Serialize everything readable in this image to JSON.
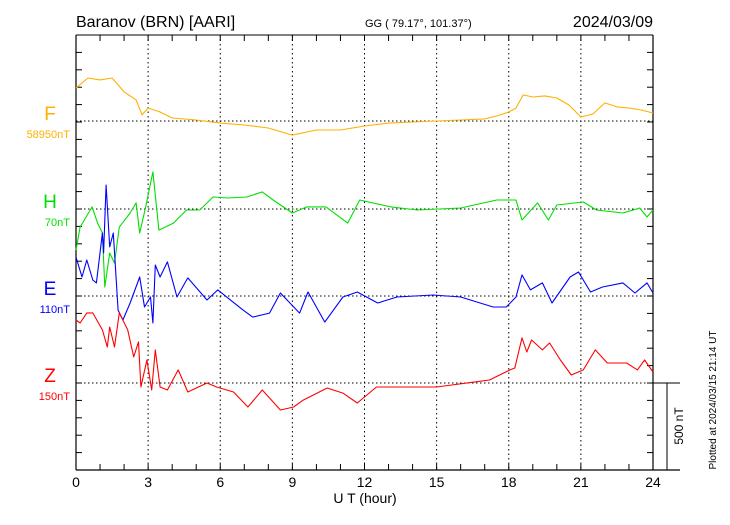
{
  "header": {
    "station": "Baranov (BRN)  [AARI]",
    "coords": "GG ( 79.17°, 101.37°)",
    "date": "2024/03/09"
  },
  "footer": {
    "plotted_at": "Plotted at 2024/03/15 21:14 UT"
  },
  "chart_data": {
    "type": "line",
    "title": "Baranov (BRN)  [AARI]",
    "xlabel": "U T (hour)",
    "xlim": [
      0,
      24
    ],
    "xticks": [
      "0",
      "3",
      "6",
      "9",
      "12",
      "15",
      "18",
      "21",
      "24"
    ],
    "grid": "dotted vertical every 3 h, dotted horizontal at each component baseline",
    "scale_bar": {
      "label": "500 nT",
      "value_nT": 500
    },
    "y_unit": "nT offset from baseline",
    "series": [
      {
        "name": "F",
        "baseline_label": "58950nT",
        "color": "#ffb000",
        "x": [
          0,
          0.5,
          1,
          1.5,
          2,
          2.5,
          2.75,
          3,
          3.5,
          4,
          5,
          6,
          7,
          8,
          9,
          10,
          11,
          12,
          13,
          14,
          15,
          16,
          17,
          17.5,
          18,
          18.3,
          18.6,
          19,
          19.5,
          20,
          20.5,
          21,
          21.5,
          22,
          22.5,
          23,
          23.5,
          24
        ],
        "y": [
          190,
          247,
          236,
          247,
          167,
          121,
          35,
          75,
          52,
          17,
          6,
          -12,
          -23,
          -40,
          -81,
          -52,
          -52,
          -29,
          -12,
          -6,
          0,
          6,
          12,
          29,
          52,
          75,
          150,
          138,
          144,
          132,
          92,
          23,
          40,
          104,
          81,
          75,
          63,
          46
        ]
      },
      {
        "name": "H",
        "baseline_label": "70nT",
        "color": "#00e000",
        "x": [
          0,
          0.17,
          0.67,
          0.9,
          1.1,
          1.2,
          1.4,
          1.6,
          1.8,
          2.25,
          2.5,
          2.65,
          2.9,
          3.2,
          3.45,
          4.05,
          4.6,
          5.15,
          5.7,
          6.3,
          7.1,
          7.75,
          8.2,
          9,
          9.6,
          10.4,
          11.3,
          11.8,
          13.1,
          14.2,
          16,
          17.5,
          18.3,
          18.55,
          19.2,
          19.65,
          20,
          21.1,
          21.65,
          22.75,
          23.45,
          23.75,
          24
        ],
        "y": [
          -236,
          -104,
          12,
          -81,
          -138,
          -449,
          -253,
          -311,
          -104,
          -23,
          35,
          -138,
          12,
          213,
          -121,
          -81,
          -6,
          -6,
          69,
          63,
          69,
          98,
          52,
          -23,
          12,
          12,
          -81,
          52,
          12,
          -6,
          6,
          52,
          52,
          -63,
          35,
          -63,
          23,
          40,
          -6,
          -23,
          6,
          -46,
          -6
        ]
      },
      {
        "name": "E",
        "baseline_label": "110nT",
        "color": "#0000ff",
        "x": [
          0,
          0.25,
          0.45,
          0.7,
          0.85,
          1.1,
          1.15,
          1.25,
          1.4,
          1.55,
          1.75,
          1.95,
          2.25,
          2.65,
          2.85,
          3.1,
          3.2,
          3.3,
          3.5,
          3.8,
          4.2,
          4.65,
          5.45,
          5.9,
          6.95,
          7.35,
          8.05,
          8.5,
          9.3,
          9.65,
          10.35,
          11.1,
          11.7,
          12.55,
          13.35,
          14.85,
          16,
          17.35,
          17.9,
          18.3,
          18.55,
          18.9,
          19.4,
          19.8,
          20.55,
          20.9,
          21.4,
          21.9,
          22.75,
          23.25,
          23.75,
          24
        ],
        "y": [
          224,
          109,
          207,
          92,
          75,
          362,
          247,
          638,
          282,
          362,
          -81,
          -138,
          -40,
          109,
          -63,
          -6,
          -155,
          178,
          109,
          196,
          -6,
          104,
          -23,
          35,
          -81,
          -121,
          -98,
          17,
          -98,
          23,
          -150,
          -6,
          23,
          -40,
          -6,
          6,
          -6,
          -63,
          -63,
          -6,
          121,
          35,
          75,
          -40,
          109,
          138,
          23,
          52,
          75,
          17,
          75,
          17
        ]
      },
      {
        "name": "Z",
        "baseline_label": "150nT",
        "color": "#ff0000",
        "x": [
          0,
          0.17,
          0.45,
          0.7,
          1.1,
          1.3,
          1.4,
          1.6,
          1.8,
          2.15,
          2.4,
          2.6,
          2.7,
          2.95,
          3.15,
          3.3,
          3.5,
          3.8,
          4.25,
          4.65,
          5.45,
          5.85,
          6.55,
          7.15,
          7.75,
          8.5,
          9.05,
          9.45,
          10.45,
          11.1,
          11.7,
          12.5,
          13.6,
          15,
          17.2,
          18.05,
          18.25,
          18.55,
          18.75,
          18.95,
          19.4,
          19.7,
          20.15,
          20.6,
          21.1,
          21.6,
          22.1,
          22.9,
          23.35,
          23.65,
          24
        ],
        "y": [
          362,
          345,
          403,
          403,
          305,
          207,
          322,
          207,
          403,
          305,
          150,
          236,
          -23,
          132,
          -40,
          190,
          -23,
          -40,
          75,
          -52,
          0,
          -23,
          -52,
          -138,
          -40,
          -155,
          -138,
          -98,
          -29,
          -58,
          -115,
          -23,
          -23,
          -23,
          17,
          75,
          86,
          259,
          178,
          247,
          190,
          230,
          132,
          46,
          75,
          190,
          115,
          115,
          75,
          132,
          63
        ]
      }
    ]
  }
}
